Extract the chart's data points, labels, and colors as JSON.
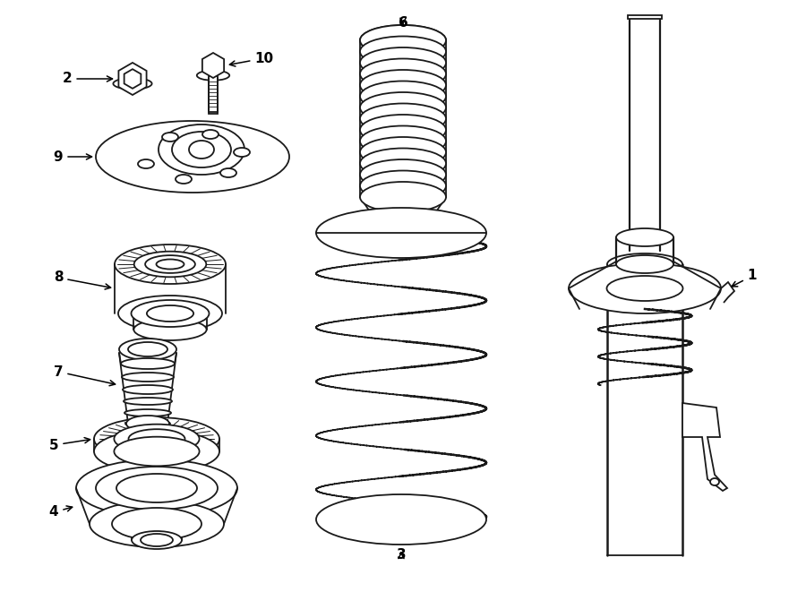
{
  "bg_color": "#ffffff",
  "line_color": "#1a1a1a",
  "lw": 1.3,
  "fig_width": 9.0,
  "fig_height": 6.61,
  "dpi": 100
}
